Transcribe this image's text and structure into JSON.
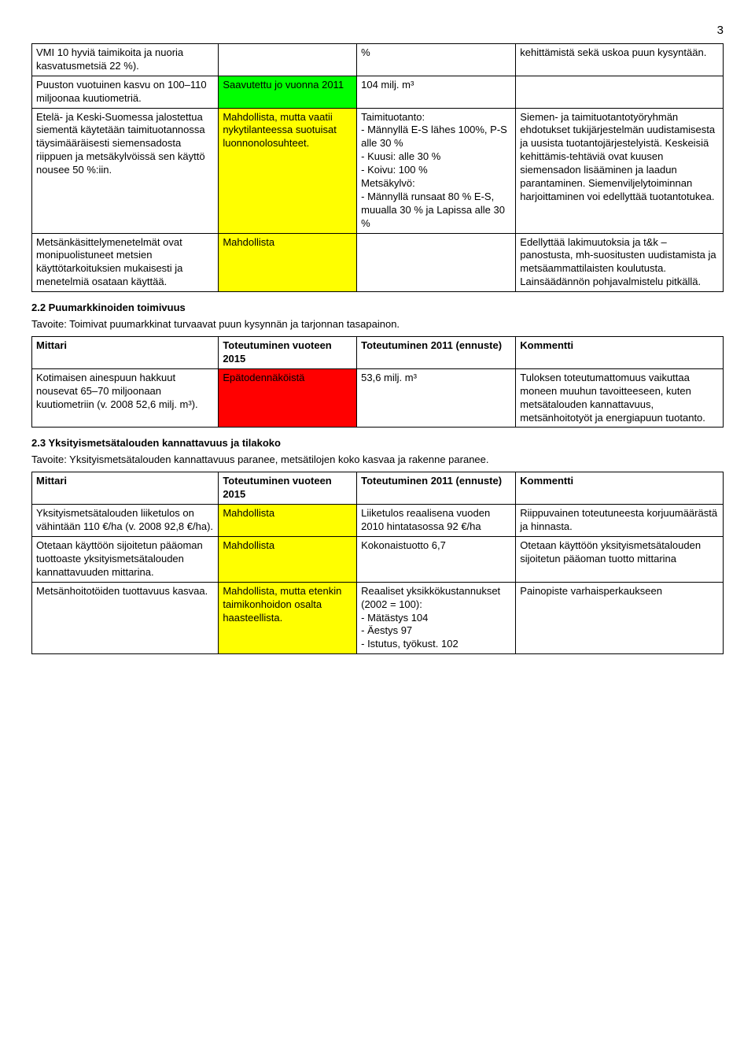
{
  "page_number": "3",
  "table1": {
    "rows": [
      {
        "c0": "VMI 10 hyviä taimikoita ja nuoria kasvatusmetsiä 22 %).",
        "c1": "",
        "c1_class": "",
        "c2": "%",
        "c3": "kehittämistä sekä uskoa puun kysyntään."
      },
      {
        "c0": "Puuston vuotuinen kasvu on 100–110 miljoonaa kuutiometriä.",
        "c1": "Saavutettu jo vuonna 2011",
        "c1_class": "green",
        "c2": "104 milj. m³",
        "c3": ""
      },
      {
        "c0": "Etelä- ja Keski-Suomessa jalostettua siementä käytetään taimituotannossa täysimääräisesti siemensadosta riippuen ja metsäkylvöissä sen käyttö nousee 50 %:iin.",
        "c1": "Mahdollista, mutta vaatii nykytilanteessa suotuisat luonnonolosuhteet.",
        "c1_class": "yellow",
        "c2": "Taimituotanto:\n- Männyllä E-S lähes 100%, P-S alle 30 %\n- Kuusi: alle 30 %\n- Koivu: 100 %\nMetsäkylvö:\n- Männyllä runsaat 80 % E-S, muualla 30 % ja Lapissa alle 30 %",
        "c3": "Siemen- ja taimituotantotyöryhmän ehdotukset tukijärjestelmän uudistamisesta ja uusista tuotantojärjestelyistä. Keskeisiä kehittämis-tehtäviä ovat kuusen siemensadon lisääminen ja laadun parantaminen. Siemenviljelytoiminnan harjoittaminen voi edellyttää tuotantotukea."
      },
      {
        "c0": "Metsänkäsittelymenetelmät ovat monipuolistuneet metsien käyttötarkoituksien mukaisesti ja menetelmiä osataan käyttää.",
        "c1": "Mahdollista",
        "c1_class": "yellow",
        "c2": "",
        "c3": "Edellyttää lakimuutoksia ja t&k –panostusta, mh-suositusten uudistamista ja metsäammattilaisten koulutusta. Lainsäädännön pohjavalmistelu pitkällä."
      }
    ]
  },
  "section22_heading": "2.2 Puumarkkinoiden toimivuus",
  "section22_tavoite": "Tavoite: Toimivat puumarkkinat turvaavat puun kysynnän ja tarjonnan tasapainon.",
  "table2": {
    "header": [
      "Mittari",
      "Toteutuminen vuoteen 2015",
      "Toteutuminen 2011 (ennuste)",
      "Kommentti"
    ],
    "rows": [
      {
        "c0": "Kotimaisen ainespuun hakkuut nousevat 65–70 miljoonaan kuutiometriin (v. 2008 52,6 milj. m³).",
        "c1": "Epätodennäköistä",
        "c1_class": "red",
        "c2": "53,6 milj. m³",
        "c3": "Tuloksen toteutumattomuus vaikuttaa moneen muuhun tavoitteeseen, kuten metsätalouden kannattavuus, metsänhoitotyöt ja energiapuun tuotanto."
      }
    ]
  },
  "section23_heading": "2.3 Yksityismetsätalouden kannattavuus ja tilakoko",
  "section23_tavoite": "Tavoite: Yksityismetsätalouden kannattavuus paranee, metsätilojen koko kasvaa ja rakenne paranee.",
  "table3": {
    "header": [
      "Mittari",
      "Toteutuminen vuoteen 2015",
      "Toteutuminen 2011 (ennuste)",
      "Kommentti"
    ],
    "rows": [
      {
        "c0": "Yksityismetsätalouden liiketulos on vähintään 110 €/ha (v. 2008 92,8 €/ha).",
        "c1": "Mahdollista",
        "c1_class": "yellow",
        "c2": "Liiketulos reaalisena vuoden 2010 hintatasossa 92 €/ha",
        "c3": "Riippuvainen toteutuneesta korjuumäärästä ja hinnasta."
      },
      {
        "c0": "Otetaan käyttöön sijoitetun pääoman tuottoaste yksityismetsätalouden kannattavuuden mittarina.",
        "c1": "Mahdollista",
        "c1_class": "yellow",
        "c2": "Kokonaistuotto 6,7",
        "c3": "Otetaan käyttöön yksityismetsätalouden sijoitetun pääoman tuotto mittarina"
      },
      {
        "c0": "Metsänhoitotöiden tuottavuus kasvaa.",
        "c1": "Mahdollista, mutta etenkin taimikonhoidon osalta haasteellista.",
        "c1_class": "yellow",
        "c2": "Reaaliset yksikkökustannukset (2002 = 100):\n- Mätästys 104\n- Äestys 97\n- Istutus, työkust. 102",
        "c3": "Painopiste varhaisperkaukseen"
      }
    ]
  }
}
